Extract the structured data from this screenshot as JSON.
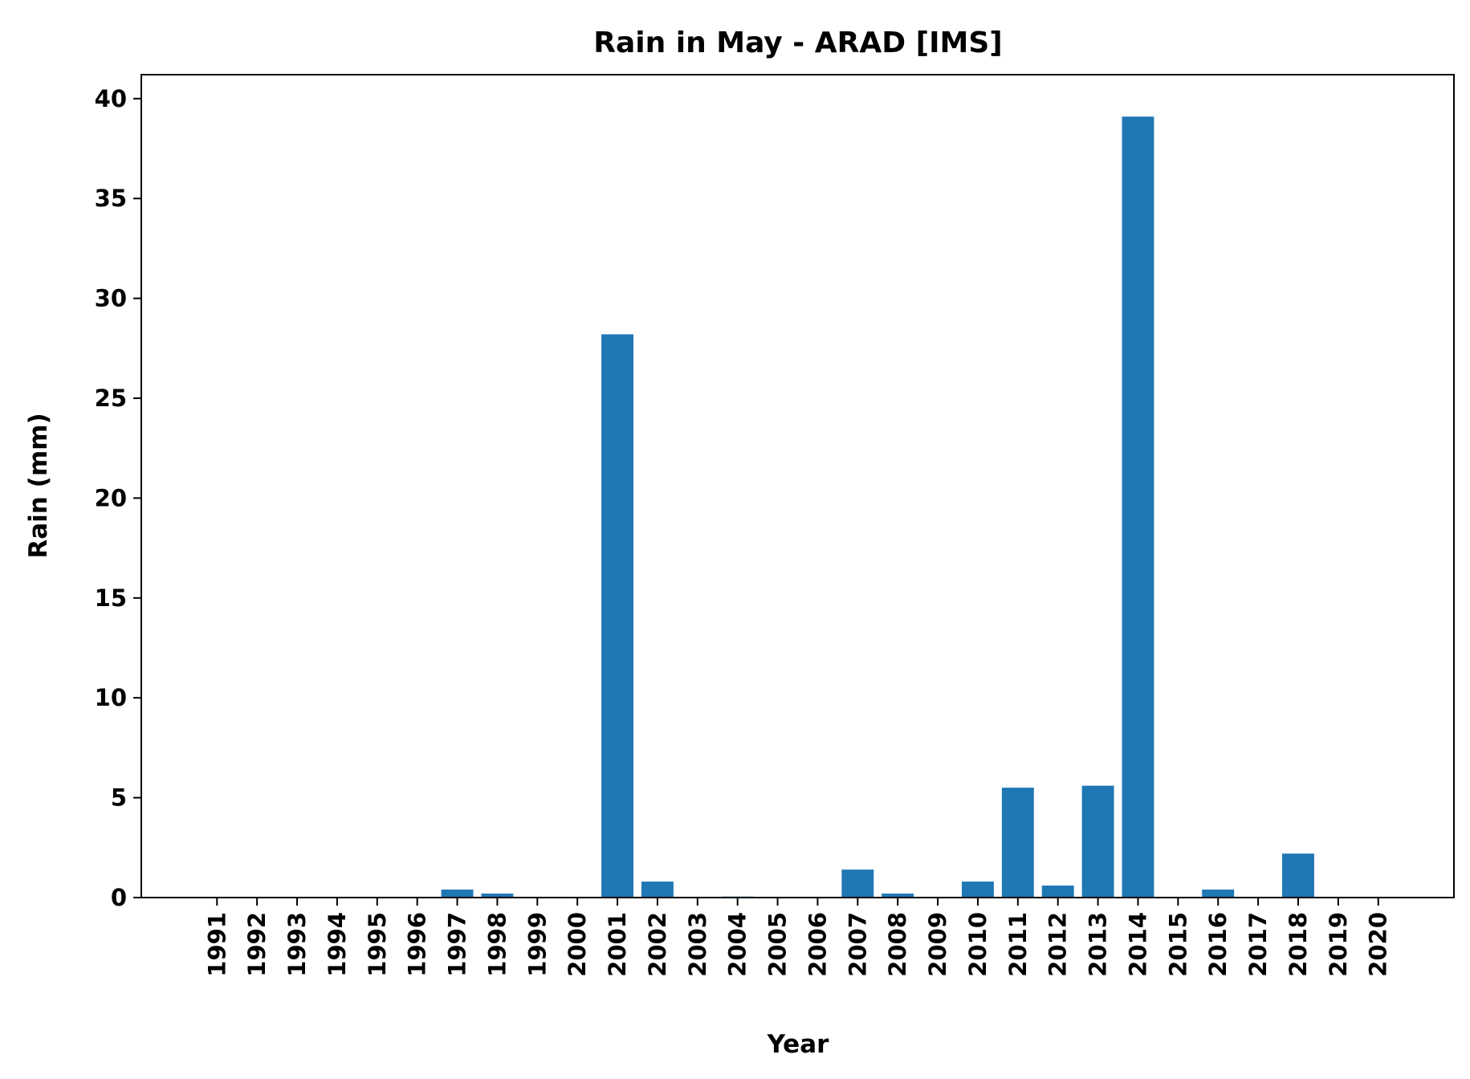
{
  "chart_data": {
    "type": "bar",
    "title": "Rain in May - ARAD [IMS]",
    "xlabel": "Year",
    "ylabel": "Rain (mm)",
    "categories": [
      "1991",
      "1992",
      "1993",
      "1994",
      "1995",
      "1996",
      "1997",
      "1998",
      "1999",
      "2000",
      "2001",
      "2002",
      "2003",
      "2004",
      "2005",
      "2006",
      "2007",
      "2008",
      "2009",
      "2010",
      "2011",
      "2012",
      "2013",
      "2014",
      "2015",
      "2016",
      "2017",
      "2018",
      "2019",
      "2020"
    ],
    "values": [
      0,
      0,
      0,
      0,
      0,
      0,
      0.4,
      0.2,
      0,
      0,
      28.2,
      0.8,
      0,
      0.05,
      0,
      0,
      1.4,
      0.2,
      0,
      0.8,
      5.5,
      0.6,
      5.6,
      39.1,
      0,
      0.4,
      0,
      2.2,
      0,
      0
    ],
    "ylim": [
      0,
      41.2
    ],
    "yticks": [
      0,
      5,
      10,
      15,
      20,
      25,
      30,
      35,
      40
    ],
    "bar_color": "#1f77b4",
    "grid": false,
    "legend": "none"
  }
}
